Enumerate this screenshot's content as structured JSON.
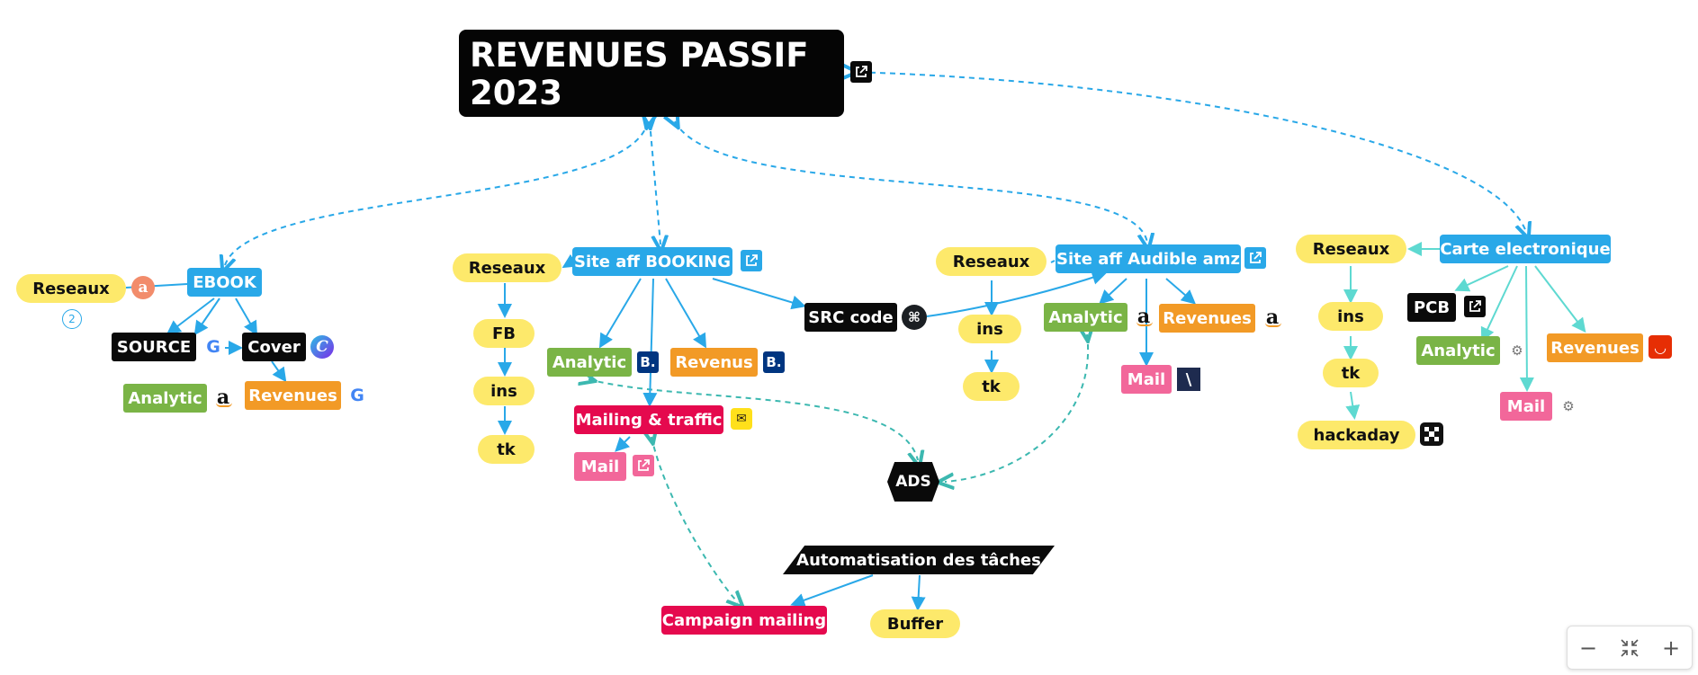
{
  "root": {
    "title": "REVENUES PASSIF 2023"
  },
  "ebook": {
    "title": "EBOOK",
    "reseaux": "Reseaux",
    "collapsed_count": "2",
    "source": "SOURCE",
    "cover": "Cover",
    "analytic": "Analytic",
    "revenues": "Revenues"
  },
  "booking": {
    "title": "Site aff BOOKING",
    "reseaux": "Reseaux",
    "fb": "FB",
    "ins": "ins",
    "tk": "tk",
    "analytic": "Analytic",
    "revenus": "Revenus",
    "mailing": "Mailing & traffic",
    "mail": "Mail",
    "src_code": "SRC code"
  },
  "ads": "ADS",
  "automation": {
    "title": "Automatisation des tâches",
    "campaign": "Campaign mailing",
    "buffer": "Buffer"
  },
  "audible": {
    "title": "Site aff Audible amz",
    "reseaux": "Reseaux",
    "ins": "ins",
    "tk": "tk",
    "analytic": "Analytic",
    "revenues": "Revenues",
    "mail": "Mail"
  },
  "carte": {
    "title": "Carte electronique",
    "reseaux": "Reseaux",
    "ins": "ins",
    "tk": "tk",
    "hackaday": "hackaday",
    "pcb": "PCB",
    "analytic": "Analytic",
    "revenues": "Revenues",
    "mail": "Mail"
  },
  "icons": {
    "amazon": "a",
    "google": "G",
    "canva": "C",
    "booking": "B.",
    "github": "⌘",
    "mailchimp": "✉",
    "writer": "\\",
    "external": "external-link-icon"
  },
  "colors": {
    "topic_blue": "#29a8e8",
    "subtopic_yellow": "#fde96b",
    "analytic_green": "#7ab446",
    "revenue_orange": "#f29a26",
    "mail_pink": "#f2679a",
    "mailing_red": "#e5094e",
    "dark": "#0a0a0a",
    "connector_blue": "#29a8e8",
    "connector_teal": "#5ed9d1"
  },
  "zoom_controls": {
    "zoom_out": "−",
    "fit": "⤡",
    "zoom_in": "+"
  }
}
